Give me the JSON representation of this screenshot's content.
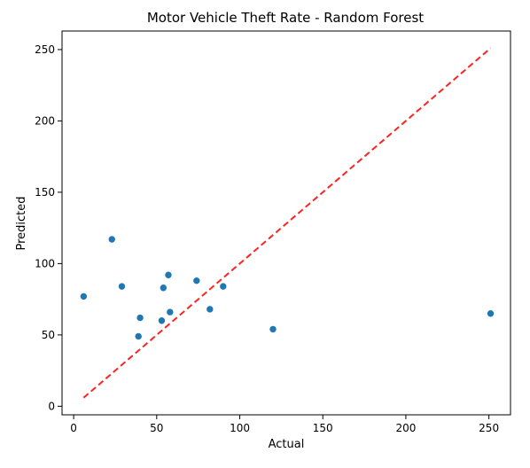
{
  "chart_data": {
    "type": "scatter",
    "title": "Motor Vehicle Theft Rate - Random Forest",
    "xlabel": "Actual",
    "ylabel": "Predicted",
    "xlim": [
      -7,
      263
    ],
    "ylim": [
      -6,
      263
    ],
    "xticks": [
      0,
      50,
      100,
      150,
      200,
      250
    ],
    "yticks": [
      0,
      50,
      100,
      150,
      200,
      250
    ],
    "grid": false,
    "point_color": "#1f77b4",
    "reference_line": {
      "style": "dashed",
      "color": "#ff2222",
      "from": [
        6,
        6
      ],
      "to": [
        251,
        251
      ]
    },
    "points": [
      {
        "x": 6,
        "y": 77
      },
      {
        "x": 23,
        "y": 117
      },
      {
        "x": 29,
        "y": 84
      },
      {
        "x": 39,
        "y": 49
      },
      {
        "x": 40,
        "y": 62
      },
      {
        "x": 53,
        "y": 60
      },
      {
        "x": 54,
        "y": 83
      },
      {
        "x": 57,
        "y": 92
      },
      {
        "x": 58,
        "y": 66
      },
      {
        "x": 74,
        "y": 88
      },
      {
        "x": 82,
        "y": 68
      },
      {
        "x": 90,
        "y": 84
      },
      {
        "x": 120,
        "y": 54
      },
      {
        "x": 251,
        "y": 65
      }
    ]
  }
}
